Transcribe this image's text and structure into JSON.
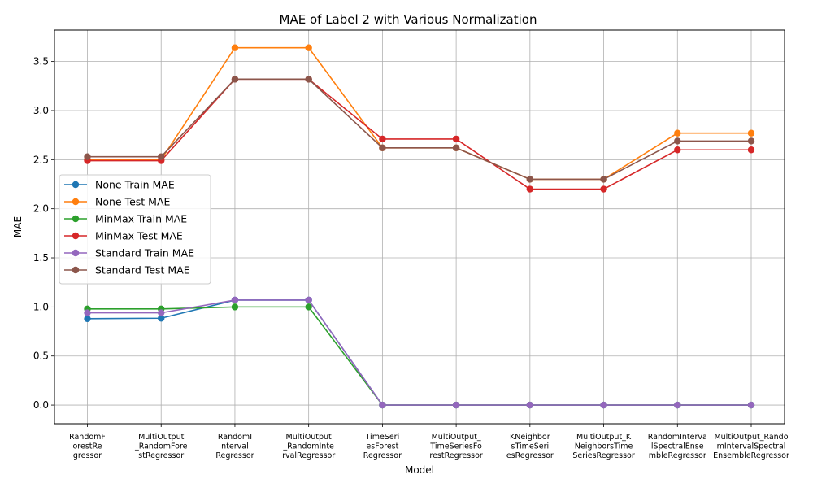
{
  "chart_data": {
    "type": "line",
    "title": "MAE of Label 2 with Various Normalization",
    "xlabel": "Model",
    "ylabel": "MAE",
    "ylim": [
      -0.19,
      3.82
    ],
    "yticks": [
      "0.0",
      "0.5",
      "1.0",
      "1.5",
      "2.0",
      "2.5",
      "3.0",
      "3.5"
    ],
    "grid": true,
    "legend_position": "center-left",
    "categories": [
      [
        "RandomF",
        "orestRe",
        "gressor"
      ],
      [
        "MultiOutput",
        "_RandomFore",
        "stRegressor"
      ],
      [
        "RandomI",
        "nterval",
        "Regressor"
      ],
      [
        "MultiOutput",
        "_RandomInte",
        "rvalRegressor"
      ],
      [
        "TimeSeri",
        "esForest",
        "Regressor"
      ],
      [
        "MultiOutput_",
        "TimeSeriesFo",
        "restRegressor"
      ],
      [
        "KNeighbor",
        "sTimeSeri",
        "esRegressor"
      ],
      [
        "MultiOutput_K",
        "NeighborsTime",
        "SeriesRegressor"
      ],
      [
        "RandomInterva",
        "lSpectralEnse",
        "mbleRegressor"
      ],
      [
        "MultiOutput_Rando",
        "mIntervalSpectral",
        "EnsembleRegressor"
      ]
    ],
    "series": [
      {
        "name": "None Train MAE",
        "color": "#1f77b4",
        "values": [
          0.88,
          0.885,
          1.07,
          1.07,
          0.0,
          0.0,
          0.0,
          0.0,
          0.0,
          0.0
        ]
      },
      {
        "name": "None Test MAE",
        "color": "#ff7f0e",
        "values": [
          2.5,
          2.5,
          3.64,
          3.64,
          2.62,
          2.62,
          2.3,
          2.3,
          2.77,
          2.77
        ]
      },
      {
        "name": "MinMax Train MAE",
        "color": "#2ca02c",
        "values": [
          0.98,
          0.98,
          1.0,
          1.0,
          0.0,
          0.0,
          0.0,
          0.0,
          0.0,
          0.0
        ]
      },
      {
        "name": "MinMax Test MAE",
        "color": "#d62728",
        "values": [
          2.49,
          2.49,
          3.32,
          3.32,
          2.71,
          2.71,
          2.2,
          2.2,
          2.6,
          2.6
        ]
      },
      {
        "name": "Standard Train MAE",
        "color": "#9467bd",
        "values": [
          0.94,
          0.94,
          1.07,
          1.07,
          0.0,
          0.0,
          0.0,
          0.0,
          0.0,
          0.0
        ]
      },
      {
        "name": "Standard Test MAE",
        "color": "#8c564b",
        "values": [
          2.53,
          2.53,
          3.32,
          3.32,
          2.62,
          2.62,
          2.3,
          2.3,
          2.69,
          2.69
        ]
      }
    ]
  }
}
